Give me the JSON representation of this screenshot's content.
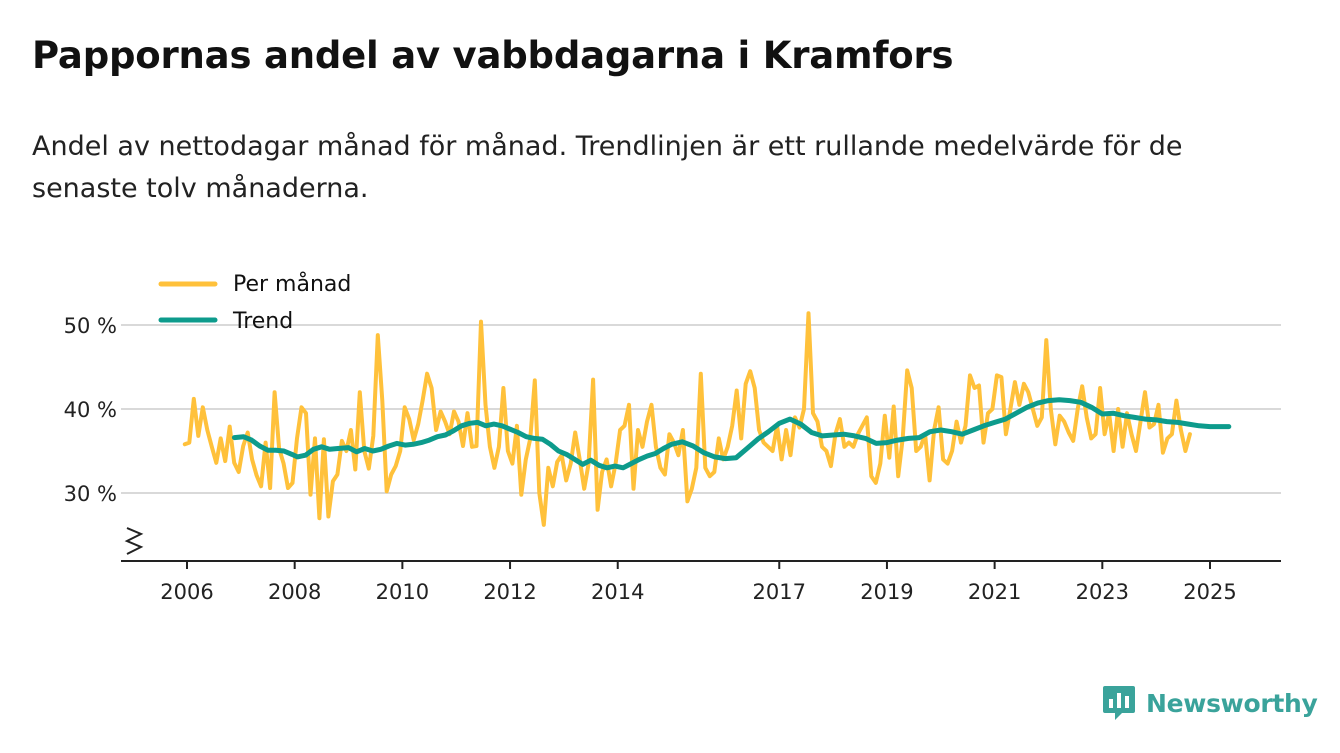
{
  "header": {
    "title": "Pappornas andel av vabbdagarna i Kramfors",
    "subtitle": "Andel av nettodagar månad för månad. Trendlinjen är ett rullande medelvärde för de senaste tolv månaderna."
  },
  "brand": {
    "name": "Newsworthy",
    "icon": "newsworthy-logo-icon",
    "color": "#3aa39b"
  },
  "colors": {
    "monthly": "#ffc13b",
    "trend": "#0d9b8c",
    "grid": "#d9d9d9",
    "axis": "#222222"
  },
  "chart_data": {
    "type": "line",
    "title": "Pappornas andel av vabbdagarna i Kramfors",
    "ylabel": "",
    "xlabel": "",
    "ylim": [
      22,
      50
    ],
    "y_ticks": [
      {
        "value": 30,
        "label": "30 %"
      },
      {
        "value": 40,
        "label": "40 %"
      },
      {
        "value": 50,
        "label": "50 %"
      }
    ],
    "x_ticks": [
      {
        "value": 2006,
        "label": "2006"
      },
      {
        "value": 2008,
        "label": "2008"
      },
      {
        "value": 2010,
        "label": "2010"
      },
      {
        "value": 2012,
        "label": "2012"
      },
      {
        "value": 2014,
        "label": "2014"
      },
      {
        "value": 2017,
        "label": "2017"
      },
      {
        "value": 2019,
        "label": "2019"
      },
      {
        "value": 2021,
        "label": "2021"
      },
      {
        "value": 2023,
        "label": "2023"
      },
      {
        "value": 2025,
        "label": "2025"
      }
    ],
    "xlim": [
      2005.25,
      2026.35
    ],
    "grid": true,
    "legend": "top-left",
    "series": [
      {
        "name": "Per månad",
        "x_start": 2005.96,
        "x_step": 0.08333,
        "values": [
          35.8,
          36.0,
          41.2,
          36.8,
          40.2,
          37.5,
          35.5,
          33.6,
          36.5,
          33.8,
          37.9,
          33.6,
          32.5,
          35.6,
          37.2,
          34.0,
          32.1,
          30.8,
          36.0,
          30.6,
          42.0,
          35.3,
          33.5,
          30.6,
          31.2,
          36.5,
          40.2,
          39.5,
          29.8,
          36.5,
          27.0,
          36.4,
          27.2,
          31.4,
          32.2,
          36.2,
          35.0,
          37.5,
          32.8,
          42.0,
          35.0,
          32.9,
          36.8,
          48.8,
          41.0,
          30.2,
          32.2,
          33.2,
          35.0,
          40.2,
          38.8,
          36.3,
          38.2,
          41.0,
          44.2,
          42.5,
          37.5,
          39.7,
          38.5,
          37.0,
          39.7,
          38.5,
          35.6,
          39.5,
          35.5,
          35.6,
          50.4,
          40.5,
          35.5,
          33.0,
          35.5,
          42.5,
          35.0,
          33.5,
          38.0,
          29.8,
          34.0,
          36.5,
          43.4,
          30.0,
          26.2,
          33.0,
          30.8,
          33.7,
          34.5,
          31.5,
          33.5,
          37.2,
          34.0,
          30.5,
          33.5,
          43.5,
          28.0,
          32.5,
          34.0,
          30.8,
          33.5,
          37.5,
          38.0,
          40.5,
          30.5,
          37.5,
          35.5,
          38.5,
          40.5,
          35.5,
          33.0,
          32.2,
          37.0,
          36.0,
          34.5,
          37.5,
          29.0,
          30.5,
          33.0,
          44.2,
          33.0,
          32.0,
          32.5,
          36.5,
          34.0,
          35.5,
          38.0,
          42.2,
          36.5,
          43.0,
          44.5,
          42.5,
          37.5,
          36.0,
          35.5,
          35.0,
          38.0,
          34.0,
          37.5,
          34.5,
          39.0,
          37.8,
          40.0,
          51.4,
          39.5,
          38.5,
          35.5,
          35.0,
          33.2,
          37.0,
          38.8,
          35.5,
          36.0,
          35.5,
          37.0,
          38.0,
          39.0,
          32.0,
          31.2,
          33.5,
          39.2,
          34.2,
          40.3,
          32.0,
          36.5,
          44.6,
          42.5,
          35.0,
          35.5,
          37.0,
          31.5,
          37.5,
          40.2,
          34.0,
          33.5,
          35.0,
          38.5,
          36.0,
          38.0,
          44.0,
          42.5,
          42.8,
          36.0,
          39.5,
          40.0,
          44.0,
          43.8,
          37.0,
          40.0,
          43.2,
          40.5,
          43.0,
          42.0,
          40.0,
          38.0,
          39.0,
          48.2,
          40.0,
          35.8,
          39.2,
          38.5,
          37.2,
          36.2,
          40.0,
          42.7,
          39.0,
          36.5,
          37.0,
          42.5,
          37.0,
          39.5,
          35.0,
          40.0,
          35.5,
          39.5,
          37.0,
          35.0,
          38.5,
          42.0,
          37.8,
          38.2,
          40.5,
          34.8,
          36.5,
          37.0,
          41.0,
          37.5,
          35.0,
          37.0
        ]
      },
      {
        "name": "Trend",
        "points": [
          [
            2006.88,
            36.6
          ],
          [
            2007.05,
            36.7
          ],
          [
            2007.2,
            36.3
          ],
          [
            2007.35,
            35.6
          ],
          [
            2007.5,
            35.1
          ],
          [
            2007.65,
            35.1
          ],
          [
            2007.8,
            35.0
          ],
          [
            2007.95,
            34.6
          ],
          [
            2008.05,
            34.3
          ],
          [
            2008.2,
            34.5
          ],
          [
            2008.35,
            35.2
          ],
          [
            2008.5,
            35.5
          ],
          [
            2008.65,
            35.2
          ],
          [
            2008.8,
            35.3
          ],
          [
            2009.0,
            35.4
          ],
          [
            2009.15,
            34.9
          ],
          [
            2009.3,
            35.3
          ],
          [
            2009.45,
            35.0
          ],
          [
            2009.6,
            35.2
          ],
          [
            2009.75,
            35.6
          ],
          [
            2009.9,
            35.9
          ],
          [
            2010.05,
            35.7
          ],
          [
            2010.2,
            35.8
          ],
          [
            2010.35,
            36.0
          ],
          [
            2010.5,
            36.3
          ],
          [
            2010.65,
            36.7
          ],
          [
            2010.8,
            36.9
          ],
          [
            2010.95,
            37.4
          ],
          [
            2011.1,
            38.0
          ],
          [
            2011.25,
            38.3
          ],
          [
            2011.4,
            38.4
          ],
          [
            2011.55,
            38.0
          ],
          [
            2011.7,
            38.2
          ],
          [
            2011.85,
            38.0
          ],
          [
            2012.0,
            37.6
          ],
          [
            2012.15,
            37.2
          ],
          [
            2012.3,
            36.7
          ],
          [
            2012.45,
            36.5
          ],
          [
            2012.6,
            36.4
          ],
          [
            2012.75,
            35.8
          ],
          [
            2012.9,
            35.0
          ],
          [
            2013.05,
            34.6
          ],
          [
            2013.2,
            34.0
          ],
          [
            2013.35,
            33.4
          ],
          [
            2013.5,
            33.9
          ],
          [
            2013.65,
            33.3
          ],
          [
            2013.8,
            33.0
          ],
          [
            2013.95,
            33.2
          ],
          [
            2014.1,
            33.0
          ],
          [
            2014.25,
            33.5
          ],
          [
            2014.4,
            34.0
          ],
          [
            2014.55,
            34.4
          ],
          [
            2014.7,
            34.7
          ],
          [
            2014.85,
            35.3
          ],
          [
            2015.0,
            35.8
          ],
          [
            2015.2,
            36.1
          ],
          [
            2015.4,
            35.6
          ],
          [
            2015.6,
            34.8
          ],
          [
            2015.8,
            34.3
          ],
          [
            2016.0,
            34.1
          ],
          [
            2016.2,
            34.2
          ],
          [
            2016.4,
            35.3
          ],
          [
            2016.6,
            36.4
          ],
          [
            2016.8,
            37.3
          ],
          [
            2017.0,
            38.3
          ],
          [
            2017.2,
            38.8
          ],
          [
            2017.4,
            38.2
          ],
          [
            2017.6,
            37.2
          ],
          [
            2017.8,
            36.8
          ],
          [
            2018.0,
            36.9
          ],
          [
            2018.2,
            37.0
          ],
          [
            2018.4,
            36.8
          ],
          [
            2018.6,
            36.5
          ],
          [
            2018.8,
            35.9
          ],
          [
            2019.0,
            36.0
          ],
          [
            2019.2,
            36.3
          ],
          [
            2019.4,
            36.5
          ],
          [
            2019.6,
            36.6
          ],
          [
            2019.8,
            37.3
          ],
          [
            2020.0,
            37.5
          ],
          [
            2020.2,
            37.3
          ],
          [
            2020.4,
            37.0
          ],
          [
            2020.6,
            37.5
          ],
          [
            2020.8,
            38.0
          ],
          [
            2021.0,
            38.4
          ],
          [
            2021.2,
            38.8
          ],
          [
            2021.4,
            39.5
          ],
          [
            2021.6,
            40.2
          ],
          [
            2021.8,
            40.7
          ],
          [
            2022.0,
            41.0
          ],
          [
            2022.2,
            41.1
          ],
          [
            2022.4,
            41.0
          ],
          [
            2022.6,
            40.8
          ],
          [
            2022.8,
            40.2
          ],
          [
            2023.0,
            39.4
          ],
          [
            2023.2,
            39.5
          ],
          [
            2023.4,
            39.2
          ],
          [
            2023.6,
            39.0
          ],
          [
            2023.8,
            38.8
          ],
          [
            2024.0,
            38.7
          ],
          [
            2024.2,
            38.5
          ],
          [
            2024.4,
            38.4
          ],
          [
            2024.6,
            38.2
          ],
          [
            2024.8,
            38.0
          ],
          [
            2025.0,
            37.9
          ],
          [
            2025.2,
            37.9
          ],
          [
            2025.35,
            37.9
          ]
        ]
      }
    ]
  }
}
